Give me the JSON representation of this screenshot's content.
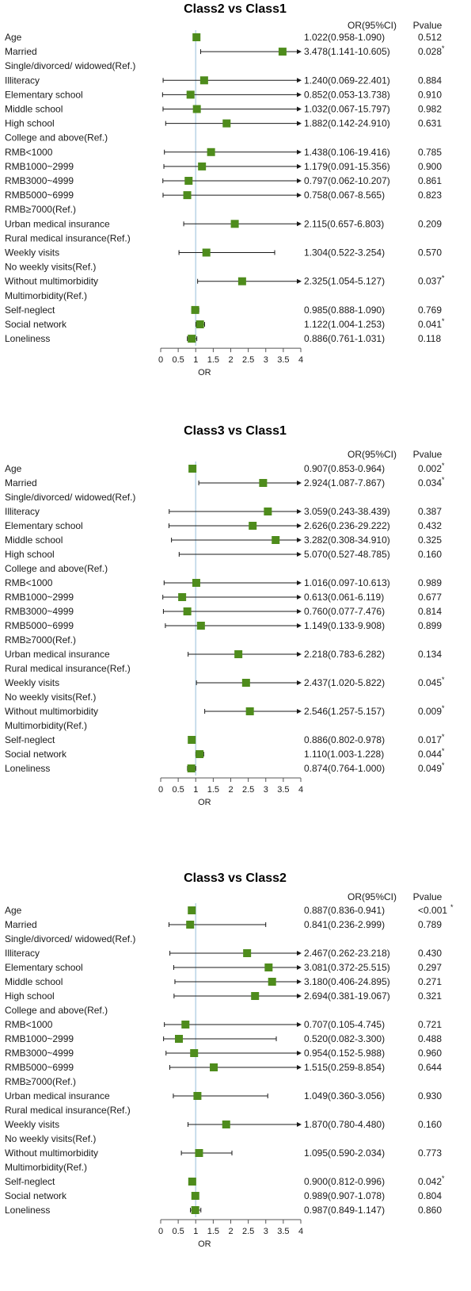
{
  "chart_data": [
    {
      "type": "forest",
      "title": "Class2 vs Class1",
      "or_header": "OR(95%CI)",
      "p_header": "Pvalue",
      "xlabel": "OR",
      "xlim": [
        0,
        4
      ],
      "ticks": [
        "0",
        "0.5",
        "1",
        "1.5",
        "2",
        "2.5",
        "3",
        "3.5",
        "4"
      ],
      "reference_line": 1,
      "marker_color": "#4e8c1c",
      "rows": [
        {
          "label": "Age",
          "or": 1.022,
          "lo": 0.958,
          "hi": 1.09,
          "text": "1.022(0.958-1.090)",
          "p": "0.512",
          "sig": false
        },
        {
          "label": "Married",
          "or": 3.478,
          "lo": 1.141,
          "hi": 10.605,
          "text": "3.478(1.141-10.605)",
          "p": "0.028",
          "sig": true
        },
        {
          "label": "Single/divorced/ widowed(Ref.)",
          "ref": true
        },
        {
          "label": "Illiteracy",
          "or": 1.24,
          "lo": 0.069,
          "hi": 22.401,
          "text": "1.240(0.069-22.401)",
          "p": "0.884",
          "sig": false
        },
        {
          "label": "Elementary school",
          "or": 0.852,
          "lo": 0.053,
          "hi": 13.738,
          "text": "0.852(0.053-13.738)",
          "p": "0.910",
          "sig": false
        },
        {
          "label": "Middle school",
          "or": 1.032,
          "lo": 0.067,
          "hi": 15.797,
          "text": "1.032(0.067-15.797)",
          "p": "0.982",
          "sig": false
        },
        {
          "label": "High school",
          "or": 1.882,
          "lo": 0.142,
          "hi": 24.91,
          "text": "1.882(0.142-24.910)",
          "p": "0.631",
          "sig": false
        },
        {
          "label": "College and above(Ref.)",
          "ref": true
        },
        {
          "label": "RMB<1000",
          "or": 1.438,
          "lo": 0.106,
          "hi": 19.416,
          "text": "1.438(0.106-19.416)",
          "p": "0.785",
          "sig": false
        },
        {
          "label": "RMB1000~2999",
          "or": 1.179,
          "lo": 0.091,
          "hi": 15.356,
          "text": "1.179(0.091-15.356)",
          "p": "0.900",
          "sig": false
        },
        {
          "label": "RMB3000~4999",
          "or": 0.797,
          "lo": 0.062,
          "hi": 10.207,
          "text": "0.797(0.062-10.207)",
          "p": "0.861",
          "sig": false
        },
        {
          "label": "RMB5000~6999",
          "or": 0.758,
          "lo": 0.067,
          "hi": 8.565,
          "text": "0.758(0.067-8.565)",
          "p": "0.823",
          "sig": false
        },
        {
          "label": "RMB≥7000(Ref.)",
          "ref": true
        },
        {
          "label": "Urban medical insurance",
          "or": 2.115,
          "lo": 0.657,
          "hi": 6.803,
          "text": "2.115(0.657-6.803)",
          "p": "0.209",
          "sig": false
        },
        {
          "label": "Rural medical insurance(Ref.)",
          "ref": true
        },
        {
          "label": "Weekly visits",
          "or": 1.304,
          "lo": 0.522,
          "hi": 3.254,
          "text": "1.304(0.522-3.254)",
          "p": "0.570",
          "sig": false
        },
        {
          "label": "No weekly visits(Ref.)",
          "ref": true
        },
        {
          "label": "Without multimorbidity",
          "or": 2.325,
          "lo": 1.054,
          "hi": 5.127,
          "text": "2.325(1.054-5.127)",
          "p": "0.037",
          "sig": true
        },
        {
          "label": "Multimorbidity(Ref.)",
          "ref": true
        },
        {
          "label": "Self-neglect",
          "or": 0.985,
          "lo": 0.888,
          "hi": 1.09,
          "text": "0.985(0.888-1.090)",
          "p": "0.769",
          "sig": false
        },
        {
          "label": "Social network",
          "or": 1.122,
          "lo": 1.004,
          "hi": 1.253,
          "text": "1.122(1.004-1.253)",
          "p": "0.041",
          "sig": true
        },
        {
          "label": "Loneliness",
          "or": 0.886,
          "lo": 0.761,
          "hi": 1.031,
          "text": "0.886(0.761-1.031)",
          "p": "0.118",
          "sig": false
        }
      ]
    },
    {
      "type": "forest",
      "title": "Class3 vs Class1",
      "or_header": "OR(95%CI)",
      "p_header": "Pvalue",
      "xlabel": "OR",
      "xlim": [
        0,
        4
      ],
      "ticks": [
        "0",
        "0.5",
        "1",
        "1.5",
        "2",
        "2.5",
        "3",
        "3.5",
        "4"
      ],
      "reference_line": 1,
      "marker_color": "#4e8c1c",
      "rows": [
        {
          "label": "Age",
          "or": 0.907,
          "lo": 0.853,
          "hi": 0.964,
          "text": "0.907(0.853-0.964)",
          "p": "0.002",
          "sig": true
        },
        {
          "label": "Married",
          "or": 2.924,
          "lo": 1.087,
          "hi": 7.867,
          "text": "2.924(1.087-7.867)",
          "p": "0.034",
          "sig": true
        },
        {
          "label": "Single/divorced/ widowed(Ref.)",
          "ref": true
        },
        {
          "label": "Illiteracy",
          "or": 3.059,
          "lo": 0.243,
          "hi": 38.439,
          "text": "3.059(0.243-38.439)",
          "p": "0.387",
          "sig": false
        },
        {
          "label": "Elementary school",
          "or": 2.626,
          "lo": 0.236,
          "hi": 29.222,
          "text": "2.626(0.236-29.222)",
          "p": "0.432",
          "sig": false
        },
        {
          "label": "Middle school",
          "or": 3.282,
          "lo": 0.308,
          "hi": 34.91,
          "text": "3.282(0.308-34.910)",
          "p": "0.325",
          "sig": false
        },
        {
          "label": "High school",
          "or": 5.07,
          "lo": 0.527,
          "hi": 48.785,
          "text": "5.070(0.527-48.785)",
          "p": "0.160",
          "sig": false
        },
        {
          "label": "College and above(Ref.)",
          "ref": true
        },
        {
          "label": "RMB<1000",
          "or": 1.016,
          "lo": 0.097,
          "hi": 10.613,
          "text": "1.016(0.097-10.613)",
          "p": "0.989",
          "sig": false
        },
        {
          "label": "RMB1000~2999",
          "or": 0.613,
          "lo": 0.061,
          "hi": 6.119,
          "text": "0.613(0.061-6.119)",
          "p": "0.677",
          "sig": false
        },
        {
          "label": "RMB3000~4999",
          "or": 0.76,
          "lo": 0.077,
          "hi": 7.476,
          "text": "0.760(0.077-7.476)",
          "p": "0.814",
          "sig": false
        },
        {
          "label": "RMB5000~6999",
          "or": 1.149,
          "lo": 0.133,
          "hi": 9.908,
          "text": "1.149(0.133-9.908)",
          "p": "0.899",
          "sig": false
        },
        {
          "label": "RMB≥7000(Ref.)",
          "ref": true
        },
        {
          "label": "Urban medical insurance",
          "or": 2.218,
          "lo": 0.783,
          "hi": 6.282,
          "text": "2.218(0.783-6.282)",
          "p": "0.134",
          "sig": false
        },
        {
          "label": "Rural medical insurance(Ref.)",
          "ref": true
        },
        {
          "label": "Weekly visits",
          "or": 2.437,
          "lo": 1.02,
          "hi": 5.822,
          "text": "2.437(1.020-5.822)",
          "p": "0.045",
          "sig": true
        },
        {
          "label": "No weekly visits(Ref.)",
          "ref": true
        },
        {
          "label": "Without multimorbidity",
          "or": 2.546,
          "lo": 1.257,
          "hi": 5.157,
          "text": "2.546(1.257-5.157)",
          "p": "0.009",
          "sig": true
        },
        {
          "label": "Multimorbidity(Ref.)",
          "ref": true
        },
        {
          "label": "Self-neglect",
          "or": 0.886,
          "lo": 0.802,
          "hi": 0.978,
          "text": "0.886(0.802-0.978)",
          "p": "0.017",
          "sig": true
        },
        {
          "label": "Social network",
          "or": 1.11,
          "lo": 1.003,
          "hi": 1.228,
          "text": "1.110(1.003-1.228)",
          "p": "0.044",
          "sig": true
        },
        {
          "label": "Loneliness",
          "or": 0.874,
          "lo": 0.764,
          "hi": 1.0,
          "text": "0.874(0.764-1.000)",
          "p": "0.049",
          "sig": true
        }
      ]
    },
    {
      "type": "forest",
      "title": "Class3 vs Class2",
      "or_header": "OR(95%CI)",
      "p_header": "Pvalue",
      "xlabel": "OR",
      "xlim": [
        0,
        4
      ],
      "ticks": [
        "0",
        "0.5",
        "1",
        "1.5",
        "2",
        "2.5",
        "3",
        "3.5",
        "4"
      ],
      "reference_line": 1,
      "marker_color": "#4e8c1c",
      "rows": [
        {
          "label": "Age",
          "or": 0.887,
          "lo": 0.836,
          "hi": 0.941,
          "text": "0.887(0.836-0.941)",
          "p": "<0.001",
          "sig": true
        },
        {
          "label": "Married",
          "or": 0.841,
          "lo": 0.236,
          "hi": 2.999,
          "text": "0.841(0.236-2.999)",
          "p": "0.789",
          "sig": false
        },
        {
          "label": "Single/divorced/ widowed(Ref.)",
          "ref": true
        },
        {
          "label": "Illiteracy",
          "or": 2.467,
          "lo": 0.262,
          "hi": 23.218,
          "text": "2.467(0.262-23.218)",
          "p": "0.430",
          "sig": false
        },
        {
          "label": "Elementary school",
          "or": 3.081,
          "lo": 0.372,
          "hi": 25.515,
          "text": "3.081(0.372-25.515)",
          "p": "0.297",
          "sig": false
        },
        {
          "label": "Middle school",
          "or": 3.18,
          "lo": 0.406,
          "hi": 24.895,
          "text": "3.180(0.406-24.895)",
          "p": "0.271",
          "sig": false
        },
        {
          "label": "High school",
          "or": 2.694,
          "lo": 0.381,
          "hi": 19.067,
          "text": "2.694(0.381-19.067)",
          "p": "0.321",
          "sig": false
        },
        {
          "label": "College and above(Ref.)",
          "ref": true
        },
        {
          "label": "RMB<1000",
          "or": 0.707,
          "lo": 0.105,
          "hi": 4.745,
          "text": "0.707(0.105-4.745)",
          "p": "0.721",
          "sig": false
        },
        {
          "label": "RMB1000~2999",
          "or": 0.52,
          "lo": 0.082,
          "hi": 3.3,
          "text": "0.520(0.082-3.300)",
          "p": "0.488",
          "sig": false
        },
        {
          "label": "RMB3000~4999",
          "or": 0.954,
          "lo": 0.152,
          "hi": 5.988,
          "text": "0.954(0.152-5.988)",
          "p": "0.960",
          "sig": false
        },
        {
          "label": "RMB5000~6999",
          "or": 1.515,
          "lo": 0.259,
          "hi": 8.854,
          "text": "1.515(0.259-8.854)",
          "p": "0.644",
          "sig": false
        },
        {
          "label": "RMB≥7000(Ref.)",
          "ref": true
        },
        {
          "label": "Urban medical insurance",
          "or": 1.049,
          "lo": 0.36,
          "hi": 3.056,
          "text": "1.049(0.360-3.056)",
          "p": "0.930",
          "sig": false
        },
        {
          "label": "Rural medical insurance(Ref.)",
          "ref": true
        },
        {
          "label": "Weekly visits",
          "or": 1.87,
          "lo": 0.78,
          "hi": 4.48,
          "text": "1.870(0.780-4.480)",
          "p": "0.160",
          "sig": false
        },
        {
          "label": "No weekly visits(Ref.)",
          "ref": true
        },
        {
          "label": "Without multimorbidity",
          "or": 1.095,
          "lo": 0.59,
          "hi": 2.034,
          "text": "1.095(0.590-2.034)",
          "p": "0.773",
          "sig": false
        },
        {
          "label": "Multimorbidity(Ref.)",
          "ref": true
        },
        {
          "label": "Self-neglect",
          "or": 0.9,
          "lo": 0.812,
          "hi": 0.996,
          "text": "0.900(0.812-0.996)",
          "p": "0.042",
          "sig": true
        },
        {
          "label": "Social network",
          "or": 0.989,
          "lo": 0.907,
          "hi": 1.078,
          "text": "0.989(0.907-1.078)",
          "p": "0.804",
          "sig": false
        },
        {
          "label": "Loneliness",
          "or": 0.987,
          "lo": 0.849,
          "hi": 1.147,
          "text": "0.987(0.849-1.147)",
          "p": "0.860",
          "sig": false
        }
      ]
    }
  ]
}
